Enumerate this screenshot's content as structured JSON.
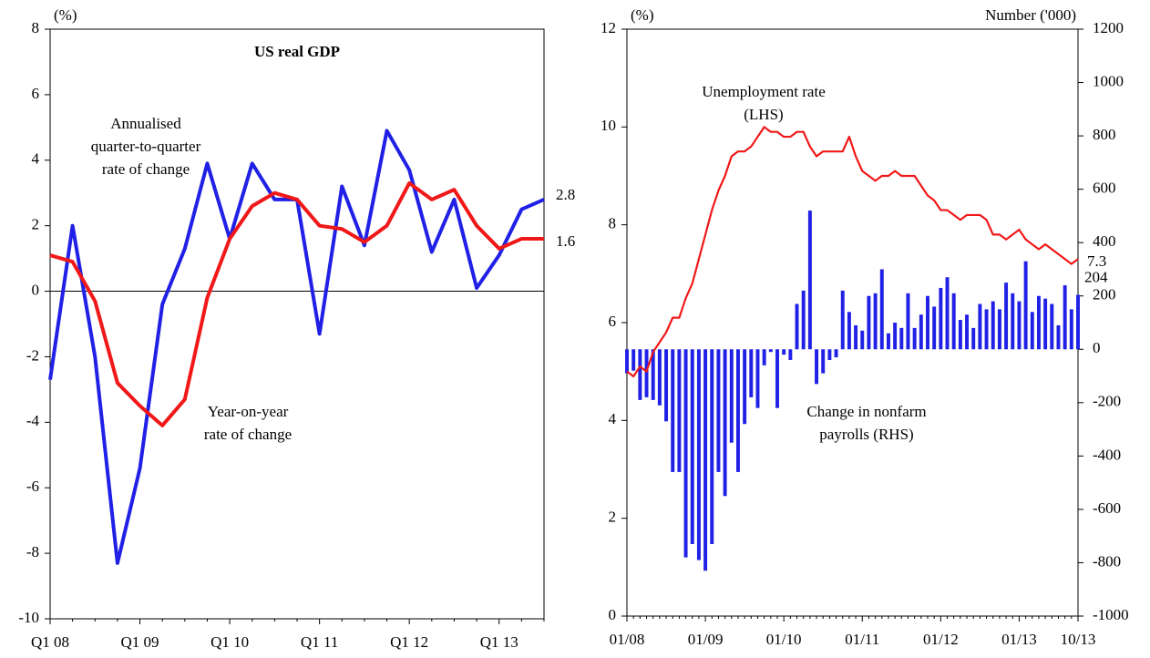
{
  "chart_data": [
    {
      "type": "line",
      "title": "US real GDP",
      "y_label": "(%)",
      "categories": [
        "Q1 08",
        null,
        null,
        null,
        "Q1 09",
        null,
        null,
        null,
        "Q1 10",
        null,
        null,
        null,
        "Q1 11",
        null,
        null,
        null,
        "Q1 12",
        null,
        null,
        null,
        "Q1 13",
        null,
        null
      ],
      "series": [
        {
          "name": [
            "Annualised",
            "quarter-to-quarter",
            "rate of change"
          ],
          "color": "#2020e6",
          "values": [
            -2.7,
            2.0,
            -2.0,
            -8.3,
            -5.4,
            -0.4,
            1.3,
            3.9,
            1.6,
            3.9,
            2.8,
            2.8,
            -1.3,
            3.2,
            1.4,
            4.9,
            3.7,
            1.2,
            2.8,
            0.1,
            1.1,
            2.5,
            2.8
          ]
        },
        {
          "name": [
            "Year-on-year",
            "rate of change"
          ],
          "color": "#f01818",
          "values": [
            1.1,
            0.9,
            -0.3,
            -2.8,
            -3.5,
            -4.1,
            -3.3,
            -0.2,
            1.6,
            2.6,
            3.0,
            2.8,
            2.0,
            1.9,
            1.5,
            2.0,
            3.3,
            2.8,
            3.1,
            2.0,
            1.3,
            1.6,
            1.6
          ]
        }
      ],
      "ylim": [
        -10,
        8
      ],
      "yticks": [
        -10,
        -8,
        -6,
        -4,
        -2,
        0,
        2,
        4,
        6,
        8
      ]
    },
    {
      "type": "combo",
      "y_label": "(%)",
      "y2_label": "Number ('000)",
      "categories": [
        "01/08",
        null,
        null,
        null,
        null,
        null,
        null,
        null,
        null,
        null,
        null,
        null,
        "01/09",
        null,
        null,
        null,
        null,
        null,
        null,
        null,
        null,
        null,
        null,
        null,
        "01/10",
        null,
        null,
        null,
        null,
        null,
        null,
        null,
        null,
        null,
        null,
        null,
        "01/11",
        null,
        null,
        null,
        null,
        null,
        null,
        null,
        null,
        null,
        null,
        null,
        "01/12",
        null,
        null,
        null,
        null,
        null,
        null,
        null,
        null,
        null,
        null,
        null,
        "01/13",
        null,
        null,
        null,
        null,
        null,
        null,
        null,
        null,
        "10/13"
      ],
      "series": [
        {
          "name": [
            "Unemployment rate",
            "(LHS)"
          ],
          "kind": "line",
          "axis": "y",
          "color": "#f01818",
          "values": [
            5.0,
            4.9,
            5.1,
            5.0,
            5.4,
            5.6,
            5.8,
            6.1,
            6.1,
            6.5,
            6.8,
            7.3,
            7.8,
            8.3,
            8.7,
            9.0,
            9.4,
            9.5,
            9.5,
            9.6,
            9.8,
            10.0,
            9.9,
            9.9,
            9.8,
            9.8,
            9.9,
            9.9,
            9.6,
            9.4,
            9.5,
            9.5,
            9.5,
            9.5,
            9.8,
            9.4,
            9.1,
            9.0,
            8.9,
            9.0,
            9.0,
            9.1,
            9.0,
            9.0,
            9.0,
            8.8,
            8.6,
            8.5,
            8.3,
            8.3,
            8.2,
            8.1,
            8.2,
            8.2,
            8.2,
            8.1,
            7.8,
            7.8,
            7.7,
            7.8,
            7.9,
            7.7,
            7.6,
            7.5,
            7.6,
            7.5,
            7.4,
            7.3,
            7.2,
            7.3
          ]
        },
        {
          "name": [
            "Change in nonfarm",
            "payrolls (RHS)"
          ],
          "kind": "bar",
          "axis": "y2",
          "color": "#2020e6",
          "values": [
            -90,
            -80,
            -190,
            -180,
            -190,
            -210,
            -270,
            -460,
            -460,
            -780,
            -730,
            -790,
            -830,
            -730,
            -460,
            -550,
            -350,
            -460,
            -280,
            -180,
            -220,
            -60,
            -10,
            -220,
            -20,
            -40,
            170,
            220,
            520,
            -130,
            -90,
            -40,
            -30,
            220,
            140,
            90,
            70,
            200,
            210,
            300,
            60,
            100,
            80,
            210,
            80,
            130,
            200,
            160,
            230,
            270,
            210,
            110,
            130,
            80,
            170,
            150,
            180,
            150,
            250,
            210,
            180,
            330,
            140,
            200,
            190,
            170,
            90,
            240,
            150,
            204
          ]
        }
      ],
      "ylim": [
        0,
        12
      ],
      "yticks": [
        0,
        2,
        4,
        6,
        8,
        10,
        12
      ],
      "y2lim": [
        -1000,
        1200
      ],
      "y2ticks": [
        -1000,
        -800,
        -600,
        -400,
        -200,
        0,
        200,
        400,
        600,
        800,
        1000,
        1200
      ]
    }
  ]
}
